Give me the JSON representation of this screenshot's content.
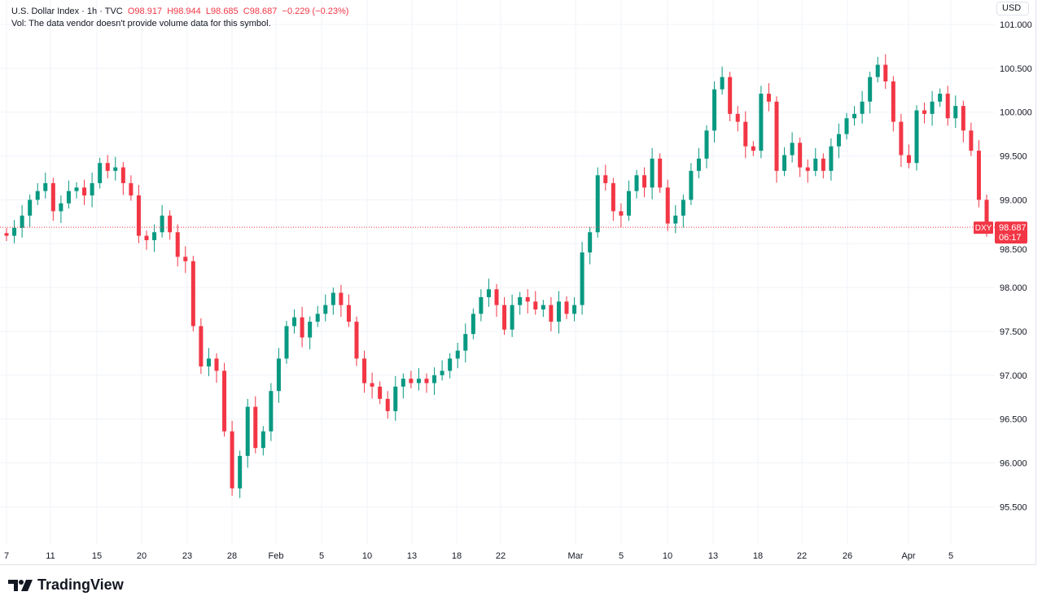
{
  "header": {
    "symbol": "U.S. Dollar Index · 1h · TVC",
    "open": "O98.917",
    "high": "H98.944",
    "low": "L98.685",
    "close": "C98.687",
    "change": "−0.229 (−0.23%)",
    "volume_note": "Vol: The data vendor doesn't provide volume data for this symbol."
  },
  "currency_button": "USD",
  "price_tag": {
    "symbol": "DXY",
    "price": "98.687",
    "countdown": "06:17"
  },
  "brand": "TradingView",
  "colors": {
    "up": "#089981",
    "down": "#f23645",
    "grid": "#f0f3fa",
    "text": "#131722"
  },
  "chart_data": {
    "type": "candlestick",
    "interval": "1h",
    "ylim": [
      95.1,
      101.0
    ],
    "y_ticks": [
      "101.000",
      "100.500",
      "100.000",
      "99.500",
      "99.000",
      "98.500",
      "98.000",
      "97.500",
      "97.000",
      "96.500",
      "96.000",
      "95.500"
    ],
    "x_ticks": [
      "7",
      "11",
      "15",
      "20",
      "23",
      "28",
      "Feb",
      "5",
      "10",
      "13",
      "18",
      "22",
      "Mar",
      "5",
      "10",
      "13",
      "18",
      "22",
      "26",
      "Apr",
      "5"
    ],
    "last_price": 98.687,
    "grid": true,
    "closes": [
      98.59,
      98.68,
      98.82,
      99.0,
      99.1,
      99.19,
      98.87,
      98.96,
      99.1,
      99.14,
      99.05,
      99.19,
      99.42,
      99.33,
      99.37,
      99.19,
      99.05,
      98.59,
      98.54,
      98.63,
      98.82,
      98.63,
      98.35,
      98.3,
      97.56,
      97.1,
      97.19,
      97.05,
      96.36,
      95.71,
      96.08,
      96.64,
      96.17,
      96.36,
      96.82,
      97.19,
      97.56,
      97.66,
      97.43,
      97.61,
      97.7,
      97.8,
      97.94,
      97.8,
      97.61,
      97.19,
      96.91,
      96.87,
      96.73,
      96.59,
      96.87,
      96.96,
      96.91,
      96.96,
      96.91,
      97.0,
      97.05,
      97.19,
      97.28,
      97.47,
      97.7,
      97.89,
      97.98,
      97.8,
      97.52,
      97.8,
      97.89,
      97.84,
      97.75,
      97.8,
      97.61,
      97.84,
      97.7,
      97.8,
      98.4,
      98.63,
      99.28,
      99.19,
      98.87,
      98.82,
      99.1,
      99.28,
      99.14,
      99.47,
      99.14,
      98.73,
      98.82,
      99.0,
      99.33,
      99.47,
      99.79,
      100.26,
      100.4,
      99.98,
      99.89,
      99.61,
      99.56,
      100.21,
      100.12,
      99.33,
      99.51,
      99.65,
      99.37,
      99.33,
      99.47,
      99.33,
      99.61,
      99.75,
      99.93,
      99.98,
      100.12,
      100.4,
      100.54,
      100.35,
      99.89,
      99.51,
      99.42,
      100.02,
      99.98,
      100.12,
      100.21,
      99.93,
      100.07,
      99.79,
      99.56,
      99.0,
      98.69
    ]
  }
}
